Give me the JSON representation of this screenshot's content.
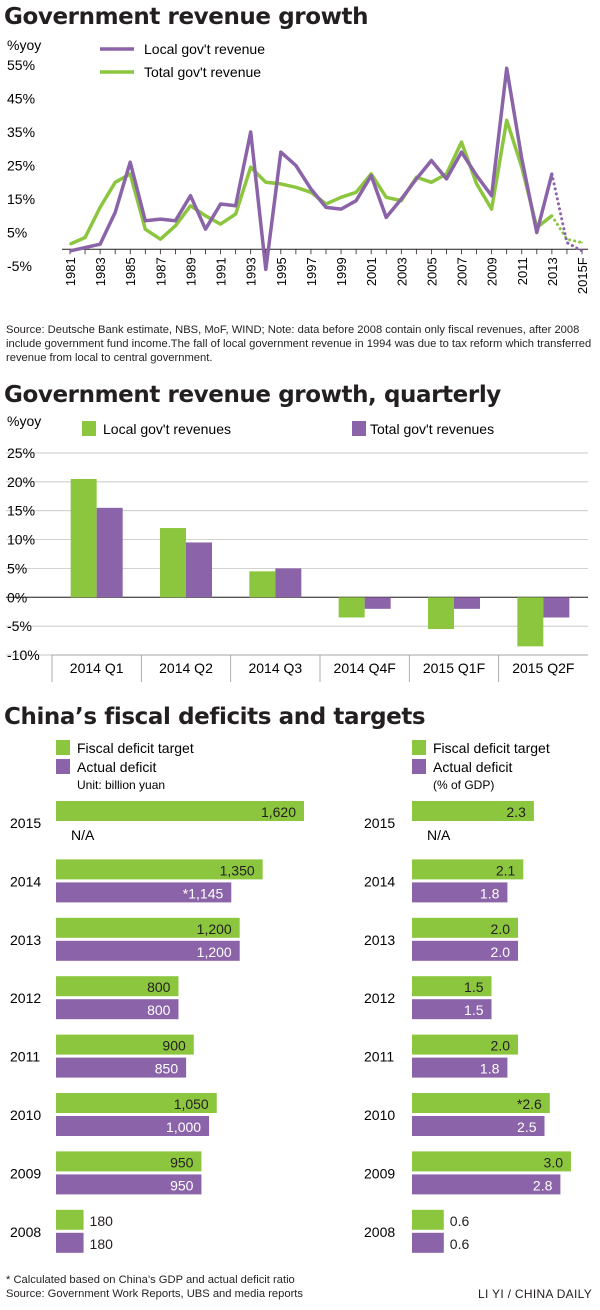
{
  "colors": {
    "local": "#8b63a8",
    "total": "#8cc63f",
    "purple": "#8b63a8",
    "green": "#8cc63f",
    "axis": "#231f20"
  },
  "chart_data": [
    {
      "type": "line",
      "title": "Government revenue growth",
      "ylabel": "%yoy",
      "x": [
        "1981",
        "1982",
        "1983",
        "1984",
        "1985",
        "1986",
        "1987",
        "1988",
        "1989",
        "1990",
        "1991",
        "1992",
        "1993",
        "1994",
        "1995",
        "1996",
        "1997",
        "1998",
        "1999",
        "2000",
        "2001",
        "2002",
        "2003",
        "2004",
        "2005",
        "2006",
        "2007",
        "2008",
        "2009",
        "2010",
        "2011",
        "2012",
        "2013",
        "2014",
        "2015F"
      ],
      "x_tick_labels": [
        "1981",
        "1983",
        "1985",
        "1987",
        "1989",
        "1991",
        "1993",
        "1995",
        "1997",
        "1999",
        "2001",
        "2003",
        "2005",
        "2007",
        "2009",
        "2011",
        "2013",
        "2015F"
      ],
      "ylim": [
        -5,
        55
      ],
      "y_ticks": [
        55,
        45,
        35,
        25,
        15,
        5,
        -5
      ],
      "y_tick_labels": [
        "55%",
        "45%",
        "35%",
        "25%",
        "15%",
        "5%",
        "-5%"
      ],
      "series": [
        {
          "name": "Local gov't revenue",
          "color": "#8b63a8",
          "values": [
            -0.5,
            0.5,
            1.5,
            11,
            26,
            8.5,
            9,
            8.5,
            16,
            6,
            13.5,
            13,
            35,
            -6,
            29,
            25,
            18,
            12.5,
            12,
            14.5,
            22,
            9.5,
            15,
            21,
            26.5,
            21,
            29,
            22,
            16,
            54,
            27,
            5,
            22.5,
            2,
            -0.5
          ],
          "forecast_from_index": 32
        },
        {
          "name": "Total gov't revenue",
          "color": "#8cc63f",
          "values": [
            1.5,
            3.5,
            12.5,
            20,
            22.5,
            6,
            3,
            7,
            13,
            10,
            7.5,
            10.5,
            24.5,
            20,
            19.5,
            18.5,
            17,
            13.5,
            15.5,
            17,
            22.5,
            15.5,
            14.5,
            21.5,
            20,
            22.5,
            32,
            19.5,
            12,
            38.5,
            24.5,
            6.5,
            10,
            3,
            2
          ],
          "forecast_from_index": 32
        }
      ]
    },
    {
      "type": "bar",
      "title": "Government revenue growth, quarterly",
      "ylabel": "%yoy",
      "categories": [
        "2014 Q1",
        "2014 Q2",
        "2014 Q3",
        "2014 Q4F",
        "2015 Q1F",
        "2015 Q2F"
      ],
      "ylim": [
        -10,
        25
      ],
      "y_ticks": [
        25,
        20,
        15,
        10,
        5,
        0,
        -5,
        -10
      ],
      "y_tick_labels": [
        "25%",
        "20%",
        "15%",
        "10%",
        "5%",
        "0%",
        "-5%",
        "-10%"
      ],
      "series": [
        {
          "name": "Local gov't revenues",
          "color": "#8cc63f",
          "values": [
            20.5,
            12,
            4.5,
            -3.5,
            -5.5,
            -8.5
          ]
        },
        {
          "name": "Total gov't revenues",
          "color": "#8b63a8",
          "values": [
            15.5,
            9.5,
            5,
            -2,
            -2,
            -3.5
          ]
        }
      ]
    },
    {
      "type": "bar",
      "orientation": "horizontal",
      "title": "China’s fiscal deficits and targets",
      "unit_label": "Unit: billion yuan",
      "categories": [
        "2015",
        "2014",
        "2013",
        "2012",
        "2011",
        "2010",
        "2009",
        "2008"
      ],
      "series": [
        {
          "name": "Fiscal deficit target",
          "color": "#8cc63f",
          "values": [
            1620,
            1350,
            1200,
            800,
            900,
            1050,
            950,
            180
          ],
          "labels": [
            "1,620",
            "1,350",
            "1,200",
            "800",
            "900",
            "1,050",
            "950",
            "180"
          ]
        },
        {
          "name": "Actual deficit",
          "color": "#8b63a8",
          "values": [
            null,
            1145,
            1200,
            800,
            850,
            1000,
            950,
            180
          ],
          "labels": [
            "N/A",
            "*1,145",
            "1,200",
            "800",
            "850",
            "1,000",
            "950",
            "180"
          ]
        }
      ]
    },
    {
      "type": "bar",
      "orientation": "horizontal",
      "unit_label": "(% of GDP)",
      "categories": [
        "2015",
        "2014",
        "2013",
        "2012",
        "2011",
        "2010",
        "2009",
        "2008"
      ],
      "series": [
        {
          "name": "Fiscal deficit target",
          "color": "#8cc63f",
          "values": [
            2.3,
            2.1,
            2.0,
            1.5,
            2.0,
            2.6,
            3.0,
            0.6
          ],
          "labels": [
            "2.3",
            "2.1",
            "2.0",
            "1.5",
            "2.0",
            "*2.6",
            "3.0",
            "0.6"
          ]
        },
        {
          "name": "Actual deficit",
          "color": "#8b63a8",
          "values": [
            null,
            1.8,
            2.0,
            1.5,
            1.8,
            2.5,
            2.8,
            0.6
          ],
          "labels": [
            "N/A",
            "1.8",
            "2.0",
            "1.5",
            "1.8",
            "2.5",
            "2.8",
            "0.6"
          ]
        }
      ]
    }
  ],
  "notes": {
    "chart1_source": "Source: Deutsche Bank estimate, NBS, MoF, WIND; Note: data before 2008 contain only fiscal revenues, after 2008 include government fund income.The fall of local government revenue in 1994 was due to tax reform which transferred revenue from local to central government.",
    "footnote": "* Calculated based on China’s GDP and actual deficit ratio",
    "source": "Source: Government Work Reports, UBS and media reports",
    "credit": "LI YI / CHINA DAILY"
  }
}
